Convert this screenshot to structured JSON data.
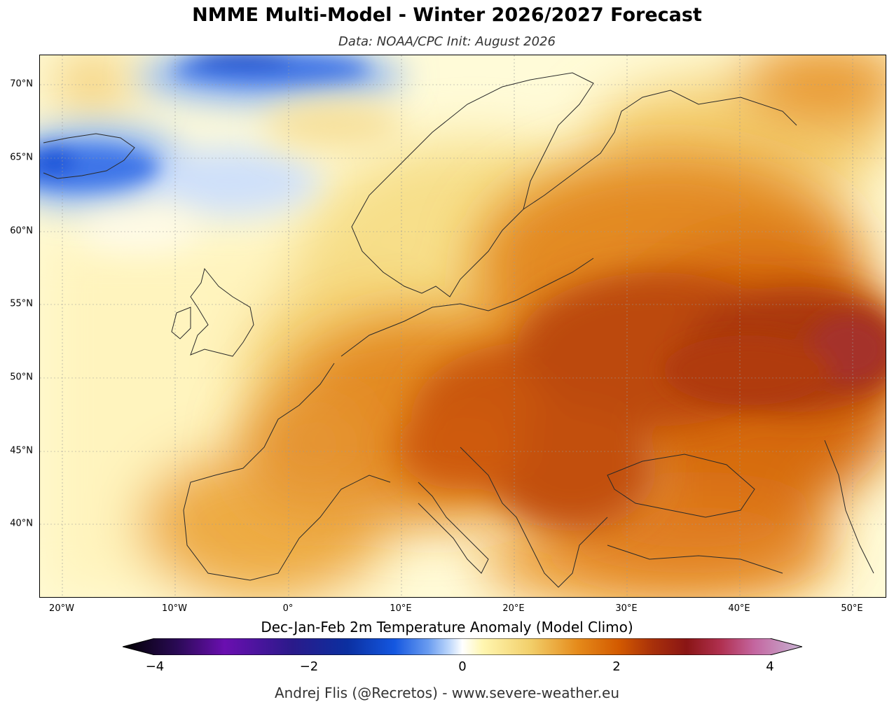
{
  "header": {
    "title": "NMME Multi-Model - Winter 2026/2027 Forecast",
    "subtitle": "Data: NOAA/CPC   Init: August 2026"
  },
  "map": {
    "region": "Europe",
    "variable": "Dec-Jan-Feb 2m Temperature Anomaly (Model Climo)",
    "lon_range": [
      -22,
      53
    ],
    "lat_range": [
      35,
      72
    ],
    "lat_labels": [
      "70°N",
      "65°N",
      "60°N",
      "55°N",
      "50°N",
      "45°N",
      "40°N"
    ],
    "lon_labels": [
      "20°W",
      "10°W",
      "0°",
      "10°E",
      "20°E",
      "30°E",
      "40°E",
      "50°E"
    ]
  },
  "colorbar": {
    "title": "Dec-Jan-Feb 2m Temperature Anomaly (Model Climo)",
    "tick_labels": [
      "−4",
      "−2",
      "0",
      "2",
      "4"
    ],
    "colors": [
      "#000000",
      "#3a0a6e",
      "#6a0fb0",
      "#2a1a8a",
      "#0b2fa0",
      "#1457e0",
      "#6a9cf0",
      "#bcd6fb",
      "#ffffff",
      "#fff6b0",
      "#f2cf6a",
      "#e58a1a",
      "#d35a00",
      "#a8300a",
      "#8a1515",
      "#b03050",
      "#c466a0",
      "#d2a8cc",
      "#c8b4d4"
    ]
  },
  "footer": {
    "credit": "Andrej Flis (@Recretos) - www.severe-weather.eu"
  }
}
